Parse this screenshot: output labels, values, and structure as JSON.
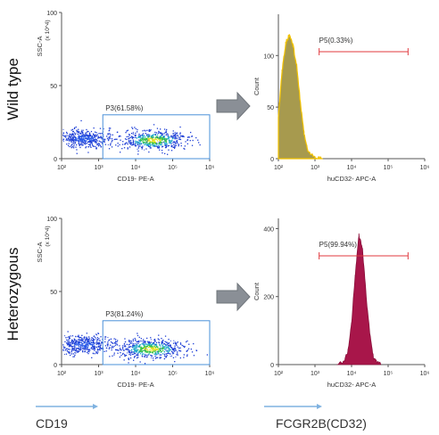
{
  "row_labels": [
    "Wild type",
    "Heterozygous"
  ],
  "bottom_labels": {
    "left": "CD19",
    "right": "FCGR2B(CD32)"
  },
  "chart_data": [
    {
      "type": "scatter",
      "panel": "wild-type-cd19",
      "xlabel": "CD19- PE-A",
      "ylabel": "SSC-A",
      "y_multiplier": "(x 10^4)",
      "xscale": "log",
      "xlim": [
        100,
        1000000
      ],
      "ylim": [
        0,
        100
      ],
      "x_ticks": [
        "10²",
        "10³",
        "10⁴",
        "10⁵",
        "10⁶"
      ],
      "y_ticks": [
        "0",
        "50",
        "100"
      ],
      "gate": {
        "label": "P3(61.58%)",
        "x_range": [
          1300,
          1000000
        ],
        "y_range": [
          0,
          30
        ]
      },
      "populations": [
        {
          "name": "CD19- cluster",
          "x_center": 400,
          "y_center": 14
        },
        {
          "name": "CD19+ cluster",
          "x_center": 30000,
          "y_center": 13
        }
      ]
    },
    {
      "type": "area",
      "panel": "wild-type-cd32",
      "xlabel": "huCD32- APC-A",
      "ylabel": "Count",
      "xscale": "log",
      "xlim": [
        100,
        1000000
      ],
      "ylim": [
        0,
        140
      ],
      "x_ticks": [
        "10²",
        "10³",
        "10⁴",
        "10⁵",
        "10⁶"
      ],
      "y_ticks": [
        "0",
        "50",
        "100"
      ],
      "gate": {
        "label": "P5(0.33%)",
        "x_range": [
          1300,
          350000
        ]
      },
      "series": [
        {
          "values_log_x": [
            2.0,
            2.1,
            2.2,
            2.3,
            2.4,
            2.5,
            2.6,
            2.7,
            2.8,
            3.0,
            3.2
          ],
          "counts": [
            40,
            85,
            112,
            120,
            110,
            90,
            55,
            25,
            8,
            2,
            0
          ]
        }
      ]
    },
    {
      "type": "scatter",
      "panel": "heterozygous-cd19",
      "xlabel": "CD19- PE-A",
      "ylabel": "SSC-A",
      "y_multiplier": "(x 10^4)",
      "xscale": "log",
      "xlim": [
        100,
        1000000
      ],
      "ylim": [
        0,
        100
      ],
      "x_ticks": [
        "10²",
        "10³",
        "10⁴",
        "10⁵",
        "10⁶"
      ],
      "y_ticks": [
        "0",
        "50",
        "100"
      ],
      "gate": {
        "label": "P3(81.24%)",
        "x_range": [
          1300,
          1000000
        ],
        "y_range": [
          0,
          30
        ]
      },
      "populations": [
        {
          "name": "CD19- cluster",
          "x_center": 400,
          "y_center": 14
        },
        {
          "name": "CD19+ cluster",
          "x_center": 25000,
          "y_center": 11
        }
      ]
    },
    {
      "type": "area",
      "panel": "heterozygous-cd32",
      "xlabel": "huCD32- APC-A",
      "ylabel": "Count",
      "xscale": "log",
      "xlim": [
        100,
        1000000
      ],
      "ylim": [
        0,
        430
      ],
      "x_ticks": [
        "10²",
        "10³",
        "10⁴",
        "10⁵",
        "10⁶"
      ],
      "y_ticks": [
        "0",
        "200",
        "400"
      ],
      "gate": {
        "label": "P5(99.94%)",
        "x_range": [
          1300,
          350000
        ]
      },
      "series": [
        {
          "values_log_x": [
            3.6,
            3.8,
            3.9,
            4.0,
            4.1,
            4.2,
            4.3,
            4.4,
            4.5,
            4.6,
            4.8
          ],
          "counts": [
            0,
            10,
            40,
            120,
            260,
            380,
            340,
            200,
            90,
            20,
            0
          ]
        }
      ]
    }
  ],
  "colors": {
    "gate_blue": "#4a90d9",
    "gate_red": "#e0393e",
    "histogram_wt_fill": "#a79a4e",
    "histogram_wt_edge": "#f2c200",
    "histogram_het_fill": "#a8164a",
    "arrow_fill": "#8a8f96",
    "arrow_line": "#7fb2e0"
  }
}
